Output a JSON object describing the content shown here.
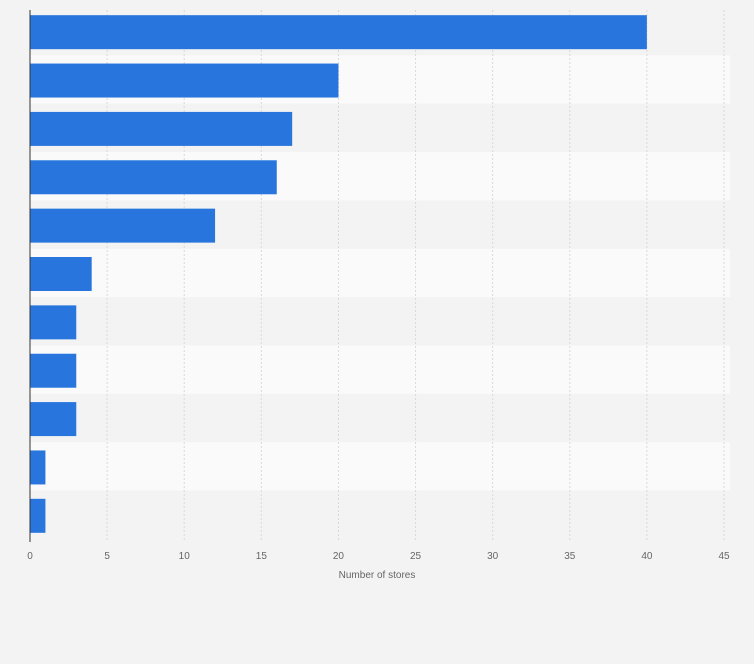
{
  "chart_data": {
    "type": "bar",
    "orientation": "horizontal",
    "categories": [
      "",
      "",
      "",
      "",
      "",
      "",
      "",
      "",
      "",
      "",
      ""
    ],
    "values": [
      40,
      20,
      17,
      16,
      12,
      4,
      3,
      3,
      3,
      1,
      1
    ],
    "xlabel": "Number of stores",
    "ylabel": "",
    "xlim": [
      0,
      45
    ],
    "xticks": [
      0,
      5,
      10,
      15,
      20,
      25,
      30,
      35,
      40,
      45
    ],
    "grid": true,
    "bar_color": "#2876dd",
    "band_colors": [
      "#f3f3f3",
      "#fafafa"
    ]
  }
}
